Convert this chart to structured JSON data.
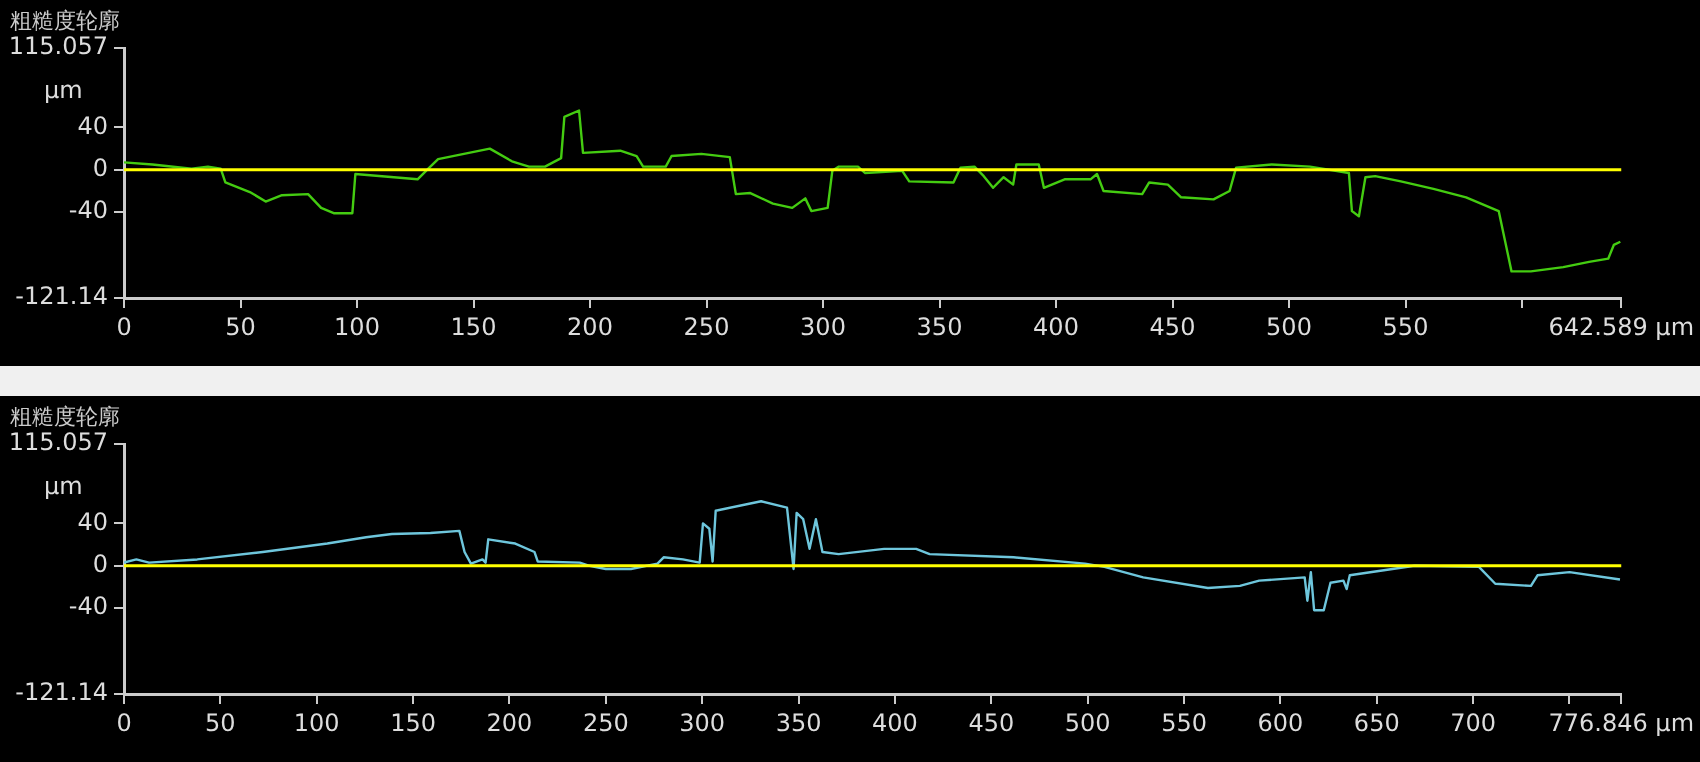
{
  "chart_data": [
    {
      "type": "line",
      "title": "粗糙度轮廓",
      "ylabel": "μm",
      "grid": false,
      "legend": false,
      "xlim": [
        0,
        642.589
      ],
      "xticks": [
        0,
        50,
        100,
        150,
        200,
        250,
        300,
        350,
        400,
        450,
        500,
        550,
        {
          "value": 600,
          "label": null
        },
        {
          "value": 642.589,
          "label": "642.589 μm"
        }
      ],
      "ylim": [
        -121.14,
        115.057
      ],
      "yticks": [
        -121.14,
        -40,
        0,
        40,
        115.057
      ],
      "ref_lines": [
        {
          "axis": "y",
          "value": 0,
          "color": "#ffff00"
        }
      ],
      "series": [
        {
          "color": "#44cc11",
          "x": [
            0,
            12.2,
            29,
            36,
            41.5,
            43.5,
            54,
            60.8,
            67.8,
            79,
            84.6,
            90,
            98,
            99.3,
            126,
            130.6,
            134.8,
            157,
            166.5,
            173.8,
            180.7,
            187.6,
            189,
            195.3,
            197,
            213,
            220,
            222.8,
            232.5,
            235,
            247.8,
            260,
            262.6,
            268.8,
            278.5,
            286.8,
            292.4,
            295,
            302,
            304,
            306.8,
            315,
            318,
            334,
            337,
            356,
            359,
            365,
            369,
            373,
            377.5,
            381.6,
            383,
            392.6,
            394.8,
            403.7,
            414.8,
            417.6,
            420.4,
            437,
            440,
            448,
            453.7,
            467.6,
            474.5,
            477.3,
            492.6,
            509,
            525.7,
            527,
            530,
            532.8,
            537,
            548,
            562,
            576,
            590,
            595.5,
            603.8,
            617.7,
            628.8,
            637,
            639.4,
            642.2
          ],
          "values": [
            7,
            5,
            1,
            3,
            1,
            -12,
            -21,
            -30,
            -24,
            -23,
            -36,
            -41,
            -41,
            -4,
            -9,
            1,
            10,
            20,
            8,
            3,
            3,
            11,
            50,
            56,
            16,
            18,
            13,
            3,
            3,
            13,
            15,
            12,
            -23,
            -22,
            -32,
            -36,
            -27,
            -39,
            -36,
            -1,
            3,
            3,
            -3,
            -1,
            -11,
            -12,
            2,
            3,
            -6,
            -17,
            -7,
            -14,
            5,
            5,
            -17,
            -9,
            -9,
            -4,
            -20,
            -23,
            -12,
            -14,
            -26,
            -28,
            -20,
            2,
            5,
            3,
            -3,
            -39,
            -44,
            -7,
            -6,
            -11,
            -18,
            -26,
            -39,
            -96,
            -96,
            -92,
            -87,
            -84,
            -71,
            -68
          ]
        }
      ]
    },
    {
      "type": "line",
      "title": "粗糙度轮廓",
      "ylabel": "μm",
      "grid": false,
      "legend": false,
      "xlim": [
        0,
        776.846
      ],
      "xticks": [
        0,
        50,
        100,
        150,
        200,
        250,
        300,
        350,
        400,
        450,
        500,
        550,
        600,
        650,
        700,
        {
          "value": 750,
          "label": null
        },
        {
          "value": 776.846,
          "label": "776.846 μm"
        }
      ],
      "ylim": [
        -121.14,
        115.057
      ],
      "yticks": [
        -121.14,
        -40,
        0,
        40,
        115.057
      ],
      "ref_lines": [
        {
          "axis": "y",
          "value": 0,
          "color": "#ffff00"
        }
      ],
      "series": [
        {
          "color": "#6ec6dc",
          "x": [
            0,
            6.4,
            13,
            38,
            72,
            105.5,
            125.6,
            139,
            159,
            174,
            176.7,
            180,
            186,
            187.6,
            189,
            203,
            213,
            214.7,
            236.5,
            241.5,
            250,
            263,
            276.8,
            280,
            290,
            298.7,
            300.4,
            303.7,
            305.4,
            307,
            330.6,
            344,
            347.4,
            349,
            352.4,
            355.7,
            359,
            362.4,
            370.8,
            394.4,
            411,
            418,
            461.6,
            498.6,
            508.7,
            528.8,
            562.4,
            579,
            589,
            612.6,
            614,
            615.8,
            617.5,
            622.5,
            626,
            632.7,
            634.4,
            636,
            669.6,
            703,
            711.5,
            730,
            733.4,
            750,
            776.2
          ],
          "values": [
            3,
            6,
            3,
            6,
            13,
            21,
            27,
            30,
            31,
            33,
            13,
            2,
            6,
            3,
            25,
            21,
            13,
            4,
            3,
            0,
            -3,
            -3,
            2,
            8,
            6,
            3,
            40,
            35,
            4,
            52,
            61,
            55,
            -3,
            50,
            44,
            16,
            44,
            13,
            11,
            16,
            16,
            11,
            8,
            2,
            -1,
            -11,
            -21,
            -19,
            -14,
            -11,
            -33,
            -6,
            -42,
            -42,
            -16,
            -14,
            -22,
            -9,
            0,
            -1,
            -17,
            -19,
            -9,
            -6,
            -13
          ]
        }
      ]
    }
  ]
}
